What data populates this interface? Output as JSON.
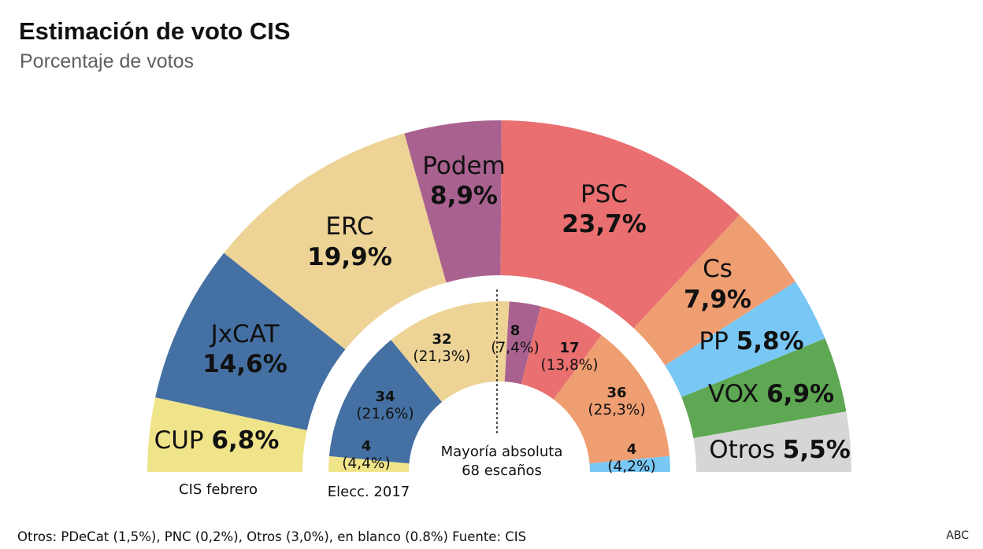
{
  "title": "Estimación de voto CIS",
  "subtitle": "Porcentaje de votos",
  "footnote": "Otros: PDeCat (1,5%), PNC (0,2%), Otros (3,0%), en blanco (0.8%) Fuente: CIS",
  "brand": "ABC",
  "colors": {
    "CUP": "#efe48a",
    "JxCAT": "#4570a3",
    "ERC": "#edd395",
    "Podem": "#a9628f",
    "PSC": "#e96f70",
    "Cs": "#ef9e72",
    "PP": "#79c7f5",
    "VOX": "#5ea753",
    "Otros": "#d6d6d6"
  },
  "chart_data": [
    {
      "type": "pie",
      "name": "CIS febrero",
      "unit": "%",
      "categories": [
        "CUP",
        "JxCAT",
        "ERC",
        "Podem",
        "PSC",
        "Cs",
        "PP",
        "VOX",
        "Otros"
      ],
      "values": [
        6.8,
        14.6,
        19.9,
        8.9,
        23.7,
        7.9,
        5.8,
        6.9,
        5.5
      ],
      "labels": [
        "6,8%",
        "14,6%",
        "19,9%",
        "8,9%",
        "23,7%",
        "7,9%",
        "5,8%",
        "6,9%",
        "5,5%"
      ]
    },
    {
      "type": "pie",
      "name": "Elecc. 2017",
      "unit": "escaños",
      "categories": [
        "CUP",
        "JxCAT",
        "ERC",
        "Podem",
        "PSC",
        "Cs",
        "PP"
      ],
      "values": [
        4,
        34,
        32,
        8,
        17,
        36,
        4
      ],
      "percent_labels": [
        "(4,4%)",
        "(21,6%)",
        "(21,3%)",
        "(7,4%)",
        "(13,8%)",
        "(25,3%)",
        "(4,2%)"
      ],
      "annotation": [
        "Mayoría absoluta",
        "68 escaños"
      ]
    }
  ]
}
